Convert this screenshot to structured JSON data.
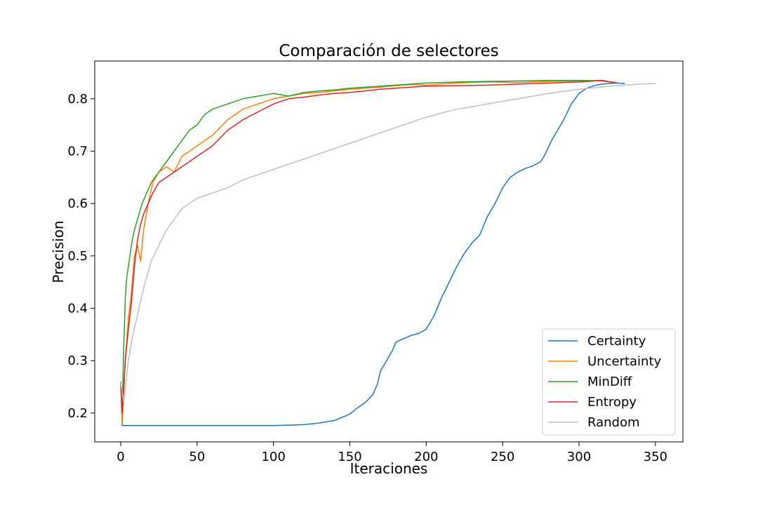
{
  "chart_data": {
    "type": "line",
    "title": "Comparación de selectores",
    "xlabel": "Iteraciones",
    "ylabel": "Precision",
    "xlim": [
      -17,
      368
    ],
    "ylim": [
      0.145,
      0.872
    ],
    "xticks": [
      0,
      50,
      100,
      150,
      200,
      250,
      300,
      350
    ],
    "yticks": [
      0.2,
      0.3,
      0.4,
      0.5,
      0.6,
      0.7,
      0.8
    ],
    "xtick_labels": [
      "0",
      "50",
      "100",
      "150",
      "200",
      "250",
      "300",
      "350"
    ],
    "ytick_labels": [
      "0.2",
      "0.3",
      "0.4",
      "0.5",
      "0.6",
      "0.7",
      "0.8"
    ],
    "grid": false,
    "legend_position": "lower-right",
    "series": [
      {
        "name": "Certainty",
        "color": "#1f77b4",
        "x": [
          0,
          1,
          20,
          60,
          100,
          110,
          120,
          130,
          140,
          145,
          150,
          155,
          160,
          165,
          168,
          170,
          172,
          175,
          178,
          180,
          185,
          190,
          195,
          200,
          205,
          210,
          215,
          220,
          225,
          230,
          235,
          240,
          245,
          250,
          255,
          260,
          265,
          270,
          275,
          278,
          282,
          286,
          290,
          295,
          300,
          305,
          310,
          315,
          320,
          325,
          330
        ],
        "y": [
          0.26,
          0.176,
          0.176,
          0.176,
          0.176,
          0.177,
          0.178,
          0.181,
          0.186,
          0.192,
          0.198,
          0.21,
          0.22,
          0.235,
          0.255,
          0.28,
          0.29,
          0.305,
          0.32,
          0.335,
          0.342,
          0.348,
          0.352,
          0.36,
          0.385,
          0.42,
          0.45,
          0.48,
          0.505,
          0.525,
          0.54,
          0.575,
          0.6,
          0.63,
          0.65,
          0.66,
          0.667,
          0.672,
          0.68,
          0.695,
          0.72,
          0.74,
          0.76,
          0.79,
          0.81,
          0.82,
          0.825,
          0.828,
          0.829,
          0.83,
          0.829
        ]
      },
      {
        "name": "Uncertainty",
        "color": "#ff7f0e",
        "x": [
          0,
          1,
          3,
          5,
          7,
          9,
          11,
          13,
          15,
          18,
          21,
          25,
          30,
          35,
          40,
          45,
          50,
          55,
          60,
          70,
          80,
          90,
          100,
          110,
          120,
          130,
          140,
          150,
          160,
          170,
          180,
          190,
          200,
          220,
          240,
          260,
          280,
          300,
          315,
          325
        ],
        "y": [
          0.26,
          0.18,
          0.3,
          0.38,
          0.43,
          0.5,
          0.52,
          0.49,
          0.55,
          0.6,
          0.64,
          0.66,
          0.67,
          0.66,
          0.69,
          0.7,
          0.71,
          0.72,
          0.73,
          0.76,
          0.78,
          0.79,
          0.8,
          0.805,
          0.81,
          0.812,
          0.815,
          0.818,
          0.82,
          0.822,
          0.825,
          0.827,
          0.826,
          0.83,
          0.832,
          0.831,
          0.833,
          0.834,
          0.835,
          0.83
        ]
      },
      {
        "name": "MinDiff",
        "color": "#2ca02c",
        "x": [
          0,
          1,
          2,
          3,
          4,
          5,
          7,
          9,
          11,
          14,
          17,
          20,
          25,
          30,
          35,
          40,
          45,
          50,
          55,
          60,
          70,
          80,
          90,
          100,
          110,
          120,
          130,
          140,
          150,
          160,
          170,
          180,
          190,
          200,
          220,
          240,
          260,
          280,
          300,
          315,
          325
        ],
        "y": [
          0.26,
          0.2,
          0.33,
          0.42,
          0.46,
          0.48,
          0.52,
          0.55,
          0.57,
          0.6,
          0.62,
          0.64,
          0.66,
          0.68,
          0.7,
          0.72,
          0.74,
          0.75,
          0.77,
          0.78,
          0.79,
          0.8,
          0.805,
          0.81,
          0.805,
          0.812,
          0.815,
          0.817,
          0.82,
          0.822,
          0.824,
          0.826,
          0.828,
          0.83,
          0.832,
          0.833,
          0.834,
          0.835,
          0.835,
          0.834,
          0.83
        ]
      },
      {
        "name": "Entropy",
        "color": "#d62728",
        "x": [
          0,
          1,
          3,
          5,
          7,
          9,
          11,
          13,
          15,
          18,
          21,
          25,
          30,
          35,
          40,
          45,
          50,
          55,
          60,
          70,
          80,
          90,
          100,
          110,
          120,
          130,
          140,
          150,
          160,
          170,
          180,
          190,
          200,
          220,
          240,
          260,
          280,
          300,
          315,
          325
        ],
        "y": [
          0.26,
          0.2,
          0.3,
          0.36,
          0.41,
          0.48,
          0.53,
          0.56,
          0.58,
          0.6,
          0.62,
          0.64,
          0.65,
          0.66,
          0.67,
          0.68,
          0.69,
          0.7,
          0.71,
          0.74,
          0.76,
          0.775,
          0.79,
          0.8,
          0.803,
          0.807,
          0.81,
          0.812,
          0.815,
          0.818,
          0.82,
          0.822,
          0.824,
          0.825,
          0.826,
          0.828,
          0.83,
          0.832,
          0.835,
          0.83
        ]
      },
      {
        "name": "Random",
        "color": "#bfbfbf",
        "x": [
          0,
          2,
          5,
          8,
          12,
          16,
          20,
          25,
          30,
          35,
          40,
          45,
          50,
          55,
          60,
          70,
          80,
          90,
          100,
          110,
          120,
          130,
          140,
          150,
          160,
          170,
          180,
          190,
          200,
          220,
          240,
          260,
          280,
          300,
          320,
          340,
          350
        ],
        "y": [
          0.26,
          0.22,
          0.3,
          0.35,
          0.4,
          0.45,
          0.49,
          0.52,
          0.55,
          0.57,
          0.59,
          0.6,
          0.61,
          0.615,
          0.62,
          0.63,
          0.645,
          0.655,
          0.665,
          0.675,
          0.685,
          0.695,
          0.705,
          0.715,
          0.725,
          0.735,
          0.745,
          0.755,
          0.765,
          0.78,
          0.79,
          0.8,
          0.81,
          0.818,
          0.824,
          0.828,
          0.829
        ]
      }
    ]
  }
}
